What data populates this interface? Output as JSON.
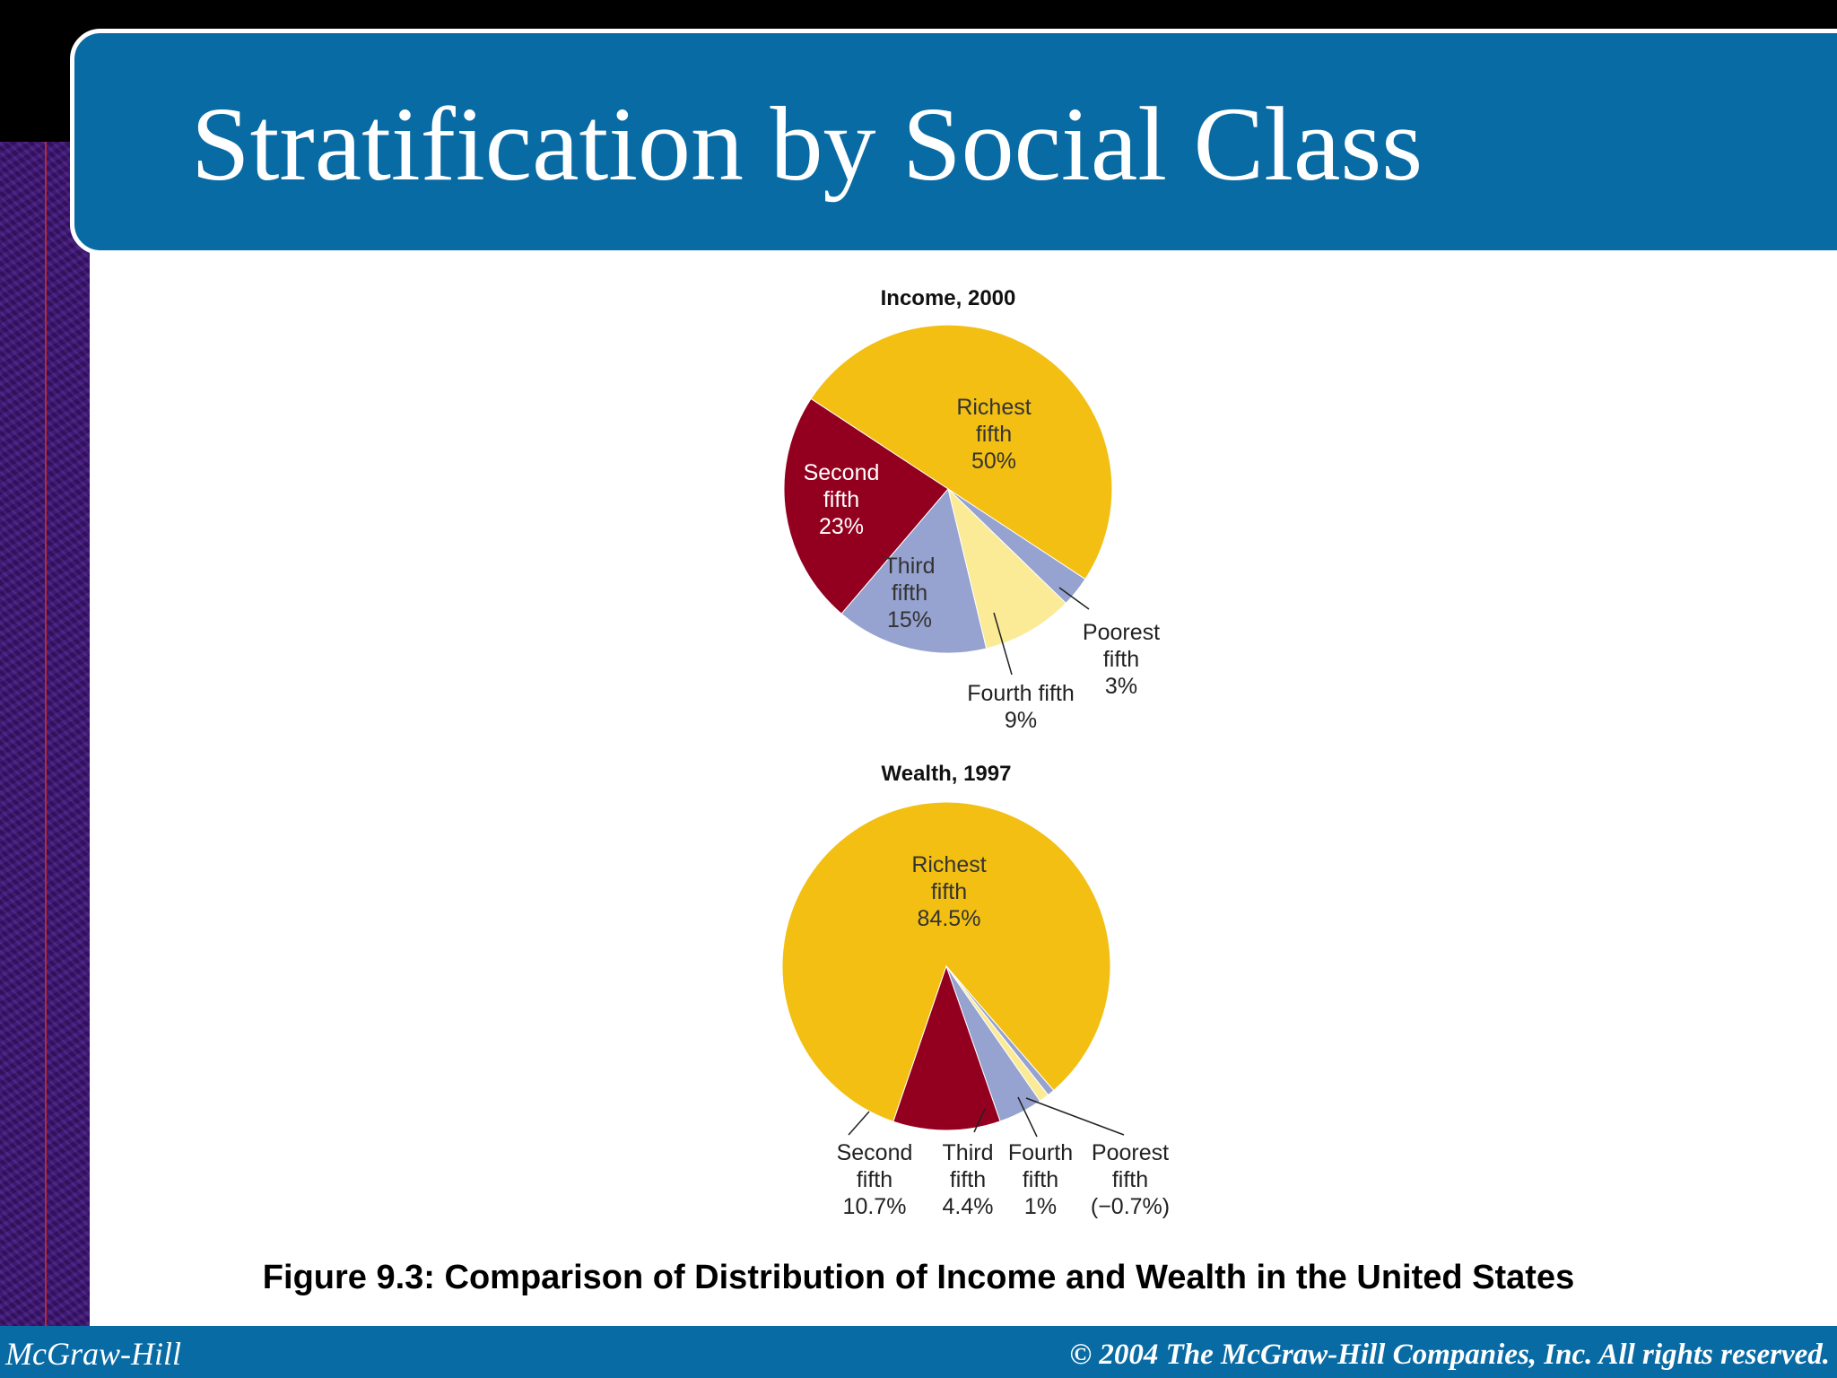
{
  "slide": {
    "title": "Stratification by Social Class",
    "caption": "Figure 9.3: Comparison of Distribution of Income and Wealth in the United States",
    "footer_left": "McGraw-Hill",
    "footer_right": "© 2004 The McGraw-Hill Companies, Inc. All rights reserved."
  },
  "colors": {
    "richest": "#f2bf12",
    "second": "#93001f",
    "third": "#96a2cf",
    "fourth": "#fbeb96",
    "poorest": "#96a2cf"
  },
  "chart_data": [
    {
      "type": "pie",
      "title": "Income, 2000",
      "slices": [
        {
          "key": "richest",
          "name": "Richest fifth",
          "value": 50,
          "lines": [
            "Richest",
            "fifth",
            "50%"
          ]
        },
        {
          "key": "poorest",
          "name": "Poorest fifth",
          "value": 3,
          "lines": [
            "Poorest",
            "fifth",
            "3%"
          ]
        },
        {
          "key": "fourth",
          "name": "Fourth fifth",
          "value": 9,
          "lines": [
            "Fourth fifth",
            "9%"
          ]
        },
        {
          "key": "third",
          "name": "Third fifth",
          "value": 15,
          "lines": [
            "Third",
            "fifth",
            "15%"
          ]
        },
        {
          "key": "second",
          "name": "Second fifth",
          "value": 23,
          "lines": [
            "Second",
            "fifth",
            "23%"
          ]
        }
      ]
    },
    {
      "type": "pie",
      "title": "Wealth, 1997",
      "slices": [
        {
          "key": "richest",
          "name": "Richest fifth",
          "value": 84.5,
          "lines": [
            "Richest",
            "fifth",
            "84.5%"
          ]
        },
        {
          "key": "poorest",
          "name": "Poorest fifth",
          "value": -0.7,
          "lines": [
            "Poorest",
            "fifth",
            "(−0.7%)"
          ]
        },
        {
          "key": "fourth",
          "name": "Fourth fifth",
          "value": 1,
          "lines": [
            "Fourth",
            "fifth",
            "1%"
          ]
        },
        {
          "key": "third",
          "name": "Third fifth",
          "value": 4.4,
          "lines": [
            "Third",
            "fifth",
            "4.4%"
          ]
        },
        {
          "key": "second",
          "name": "Second fifth",
          "value": 10.7,
          "lines": [
            "Second",
            "fifth",
            "10.7%"
          ]
        }
      ]
    }
  ]
}
